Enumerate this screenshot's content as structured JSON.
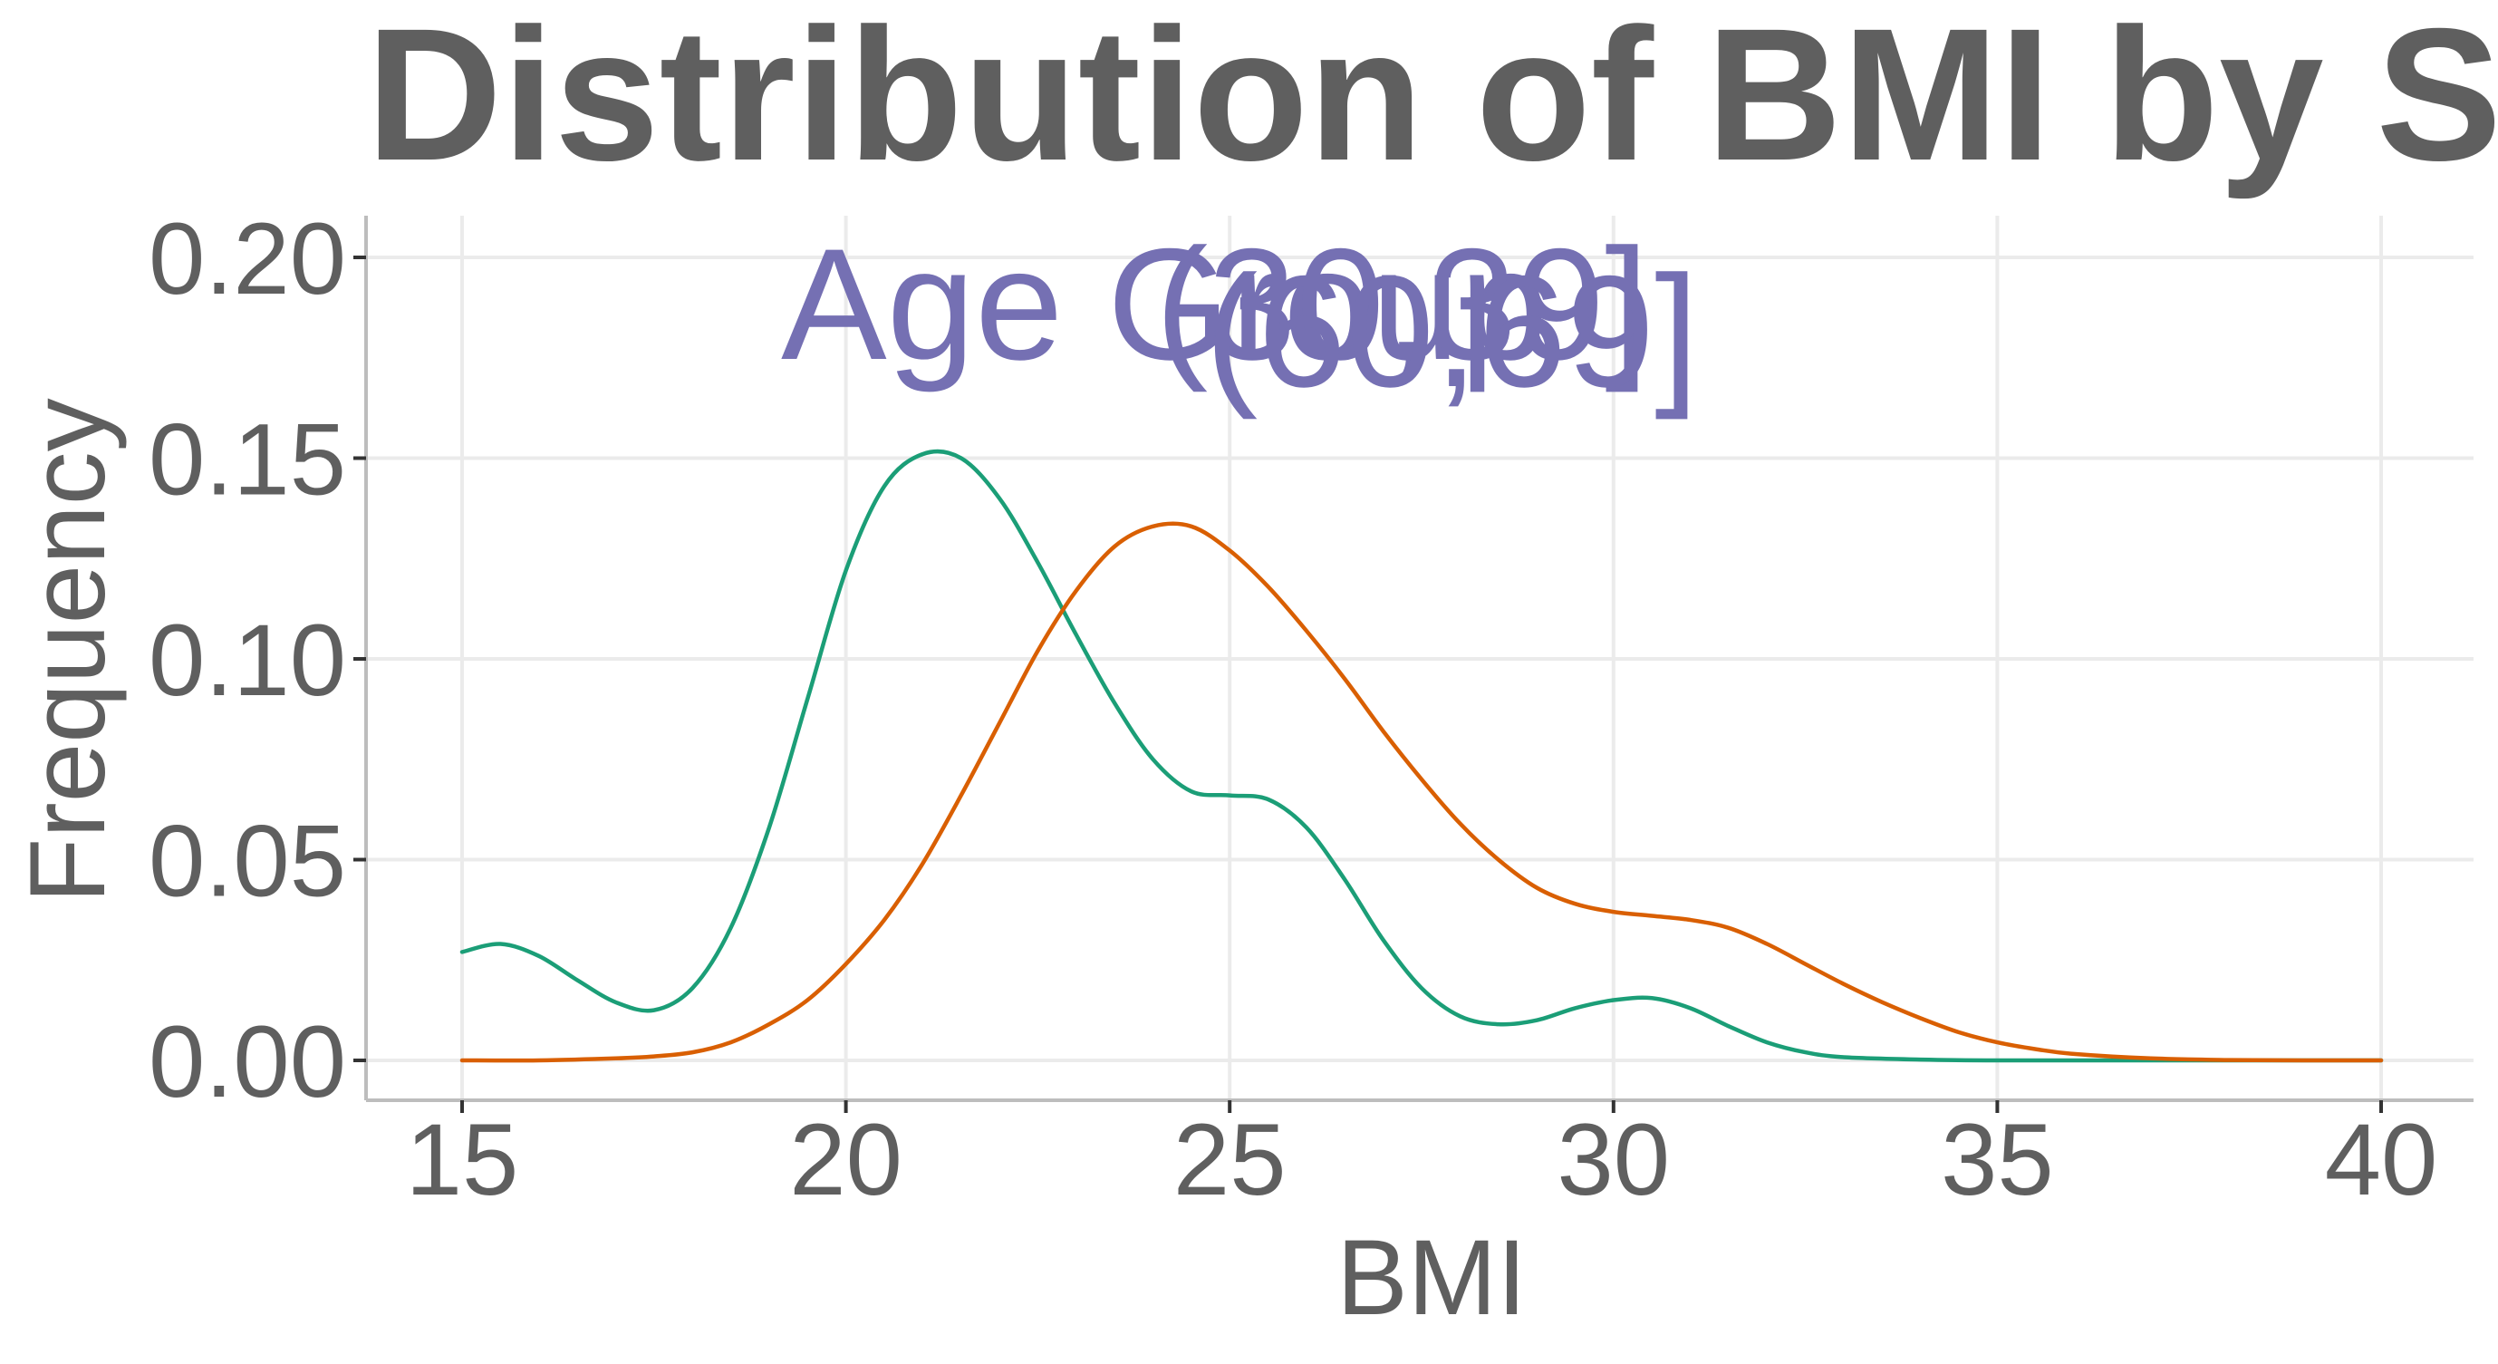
{
  "chart_data": {
    "type": "line",
    "title": "Distribution of BMI by S",
    "xlabel": "BMI",
    "ylabel": "Frequency",
    "xlim": [
      15,
      40
    ],
    "ylim": [
      0,
      0.2
    ],
    "xticks": [
      "15",
      "20",
      "25",
      "30",
      "35",
      "40"
    ],
    "yticks": [
      "0.00",
      "0.05",
      "0.10",
      "0.15",
      "0.20"
    ],
    "grid": true,
    "legend": {
      "texts": [
        "Age Group",
        "(30,39]",
        "(60,69]"
      ]
    },
    "series": [
      {
        "color": "#1b9e77",
        "x": [
          15,
          15.5,
          16,
          16.5,
          17,
          17.5,
          18,
          18.5,
          19,
          19.5,
          20,
          20.5,
          21,
          21.5,
          22,
          22.5,
          23,
          23.5,
          24,
          24.5,
          25,
          25.5,
          26,
          26.5,
          27,
          27.5,
          28,
          28.5,
          29,
          29.5,
          30,
          30.5,
          31,
          31.5,
          32,
          32.5,
          33,
          34,
          35,
          36,
          37,
          38,
          39,
          40
        ],
        "y": [
          0.027,
          0.029,
          0.026,
          0.02,
          0.0145,
          0.0125,
          0.018,
          0.033,
          0.058,
          0.09,
          0.122,
          0.143,
          0.151,
          0.15,
          0.14,
          0.124,
          0.106,
          0.089,
          0.075,
          0.067,
          0.066,
          0.065,
          0.058,
          0.045,
          0.03,
          0.018,
          0.011,
          0.009,
          0.01,
          0.013,
          0.015,
          0.0155,
          0.013,
          0.0085,
          0.0045,
          0.002,
          0.0008,
          0.0002,
          0,
          0,
          0,
          0,
          0,
          0
        ]
      },
      {
        "color": "#d95f02",
        "x": [
          15,
          16,
          17,
          17.5,
          18,
          18.5,
          19,
          19.5,
          20,
          20.5,
          21,
          21.5,
          22,
          22.5,
          23,
          23.5,
          24,
          24.5,
          25,
          25.5,
          26,
          26.5,
          27,
          27.5,
          28,
          28.5,
          29,
          29.5,
          30,
          30.5,
          31,
          31.5,
          32,
          32.5,
          33,
          33.5,
          34,
          34.5,
          35,
          35.5,
          36,
          37,
          38,
          39,
          40
        ],
        "y": [
          0,
          0,
          0.0005,
          0.001,
          0.002,
          0.0045,
          0.009,
          0.015,
          0.024,
          0.035,
          0.049,
          0.066,
          0.084,
          0.102,
          0.117,
          0.128,
          0.133,
          0.133,
          0.127,
          0.118,
          0.107,
          0.095,
          0.082,
          0.07,
          0.059,
          0.05,
          0.043,
          0.039,
          0.037,
          0.036,
          0.035,
          0.033,
          0.029,
          0.024,
          0.019,
          0.0145,
          0.0105,
          0.007,
          0.0045,
          0.0028,
          0.0016,
          0.0005,
          0.0001,
          0,
          0
        ]
      }
    ]
  }
}
